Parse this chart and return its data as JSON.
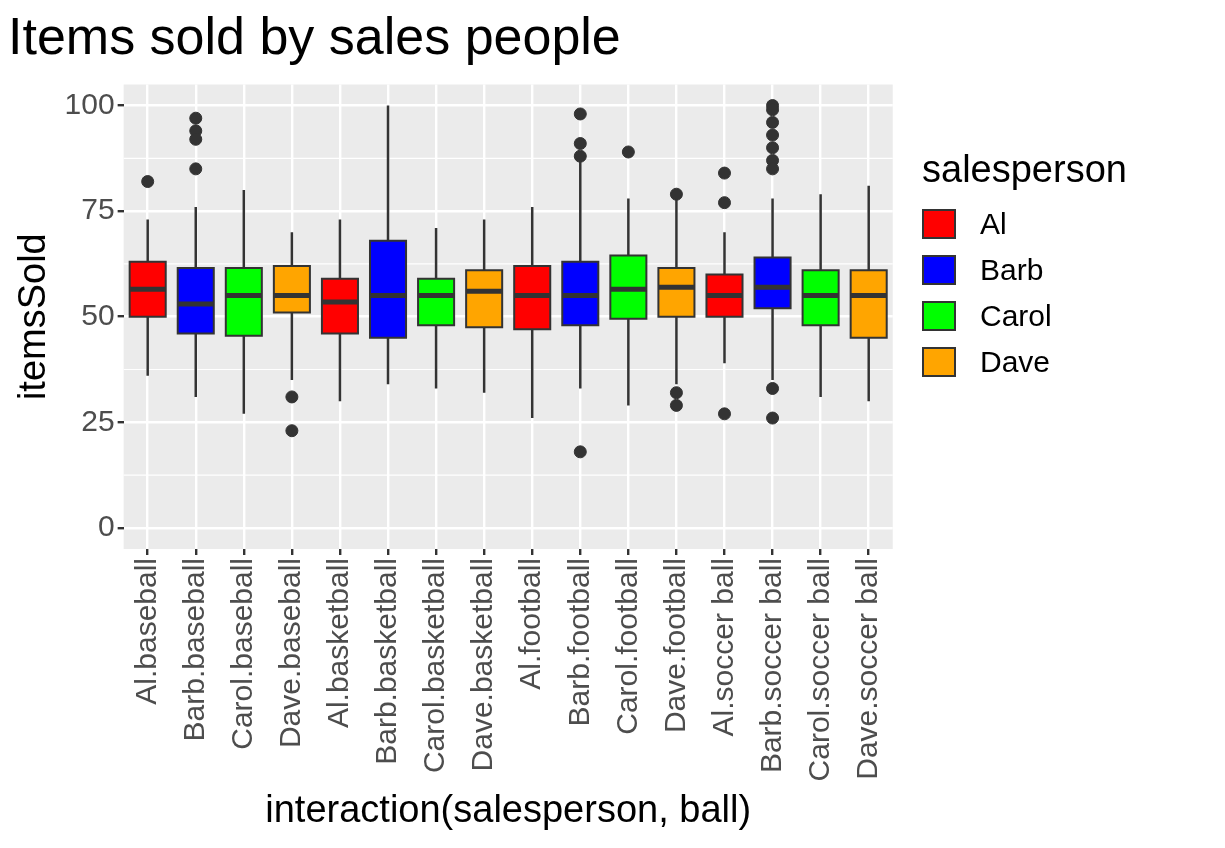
{
  "chart_data": {
    "type": "box",
    "title": "Items sold by sales people",
    "xlabel": "interaction(salesperson, ball)",
    "ylabel": "itemsSold",
    "legend_title": "salesperson",
    "legend": "right",
    "grid": true,
    "categories": [
      "Al.baseball",
      "Barb.baseball",
      "Carol.baseball",
      "Dave.baseball",
      "Al.basketball",
      "Barb.basketball",
      "Carol.basketball",
      "Dave.basketball",
      "Al.football",
      "Barb.football",
      "Carol.football",
      "Dave.football",
      "Al.soccer ball",
      "Barb.soccer ball",
      "Carol.soccer ball",
      "Dave.soccer ball"
    ],
    "ylim": [
      -5,
      105
    ],
    "yticks": [
      0,
      25,
      50,
      75,
      100
    ],
    "series": [
      {
        "name": "Al",
        "color": "#ff0000",
        "boxes": [
          {
            "low": 36,
            "q1": 50,
            "median": 56.5,
            "q3": 63,
            "high": 73,
            "outliers": [
              82
            ]
          },
          null,
          null,
          null,
          {
            "low": 30,
            "q1": 46,
            "median": 53.5,
            "q3": 59,
            "high": 73
          },
          null,
          null,
          null,
          {
            "low": 26,
            "q1": 47,
            "median": 55,
            "q3": 62,
            "high": 76
          },
          null,
          null,
          null,
          {
            "low": 39,
            "q1": 50,
            "median": 55,
            "q3": 60,
            "high": 70,
            "outliers": [
              84,
              77,
              27
            ]
          },
          null,
          null,
          null
        ]
      },
      {
        "name": "Barb",
        "color": "#0000ff",
        "boxes": [
          null,
          {
            "low": 31,
            "q1": 46,
            "median": 53,
            "q3": 61.5,
            "high": 76,
            "outliers": [
              97,
              94,
              92,
              85
            ]
          },
          null,
          null,
          null,
          {
            "low": 34,
            "q1": 45,
            "median": 55,
            "q3": 68,
            "high": 100
          },
          null,
          null,
          null,
          {
            "low": 33,
            "q1": 48,
            "median": 55,
            "q3": 63,
            "high": 87,
            "outliers": [
              98,
              91,
              88,
              18
            ]
          },
          null,
          null,
          null,
          {
            "low": 35,
            "q1": 52,
            "median": 57,
            "q3": 64,
            "high": 78,
            "outliers": [
              100,
              99,
              96,
              93,
              90,
              87,
              85,
              33,
              26
            ]
          },
          null,
          null
        ]
      },
      {
        "name": "Carol",
        "color": "#00ff00",
        "boxes": [
          null,
          null,
          {
            "low": 27,
            "q1": 45.5,
            "median": 55,
            "q3": 61.5,
            "high": 80
          },
          null,
          null,
          null,
          {
            "low": 33,
            "q1": 48,
            "median": 55,
            "q3": 59,
            "high": 71
          },
          null,
          null,
          null,
          {
            "low": 29,
            "q1": 49.5,
            "median": 56.5,
            "q3": 64.5,
            "high": 78,
            "outliers": [
              89
            ]
          },
          null,
          null,
          null,
          {
            "low": 31,
            "q1": 48,
            "median": 55,
            "q3": 61,
            "high": 79
          },
          null
        ]
      },
      {
        "name": "Dave",
        "color": "#ffa500",
        "boxes": [
          null,
          null,
          null,
          {
            "low": 35,
            "q1": 51,
            "median": 55,
            "q3": 62,
            "high": 70,
            "outliers": [
              31,
              23
            ]
          },
          null,
          null,
          null,
          {
            "low": 32,
            "q1": 47.5,
            "median": 56,
            "q3": 61,
            "high": 73
          },
          null,
          null,
          null,
          {
            "low": 34,
            "q1": 50,
            "median": 57,
            "q3": 61.5,
            "high": 78,
            "outliers": [
              79,
              32,
              29
            ]
          },
          null,
          null,
          null,
          {
            "low": 30,
            "q1": 45,
            "median": 55,
            "q3": 61,
            "high": 81
          }
        ]
      }
    ]
  }
}
